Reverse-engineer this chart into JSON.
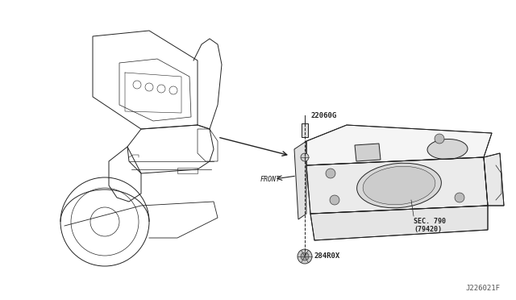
{
  "background_color": "#ffffff",
  "fig_width": 6.4,
  "fig_height": 3.72,
  "dpi": 100,
  "labels": {
    "part1": "22060G",
    "part2": "284R0X",
    "sec": "SEC. 790\n(79420)",
    "front": "FRONT",
    "diagram_id": "J226021F"
  },
  "line_color": "#222222",
  "lw": 0.7
}
